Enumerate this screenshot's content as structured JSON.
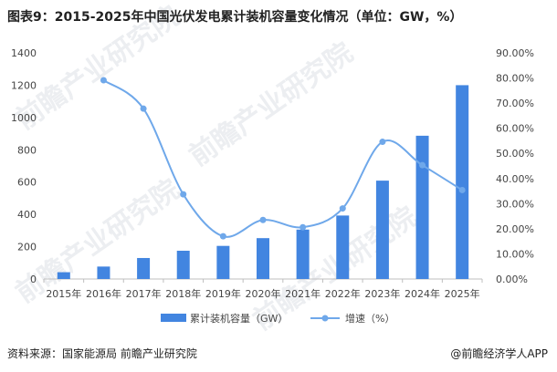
{
  "title": "图表9：2015-2025年中国光伏发电累计装机容量变化情况（单位：GW，%）",
  "source": "资料来源：国家能源局  前瞻产业研究院",
  "brand": "@前瞻经济学人APP",
  "watermark": "前瞻产业研究院",
  "chart_data": {
    "type": "bar+line",
    "title": "图表9：2015-2025年中国光伏发电累计装机容量变化情况（单位：GW，%）",
    "categories": [
      "2015年",
      "2016年",
      "2017年",
      "2018年",
      "2019年",
      "2020年",
      "2021年",
      "2022年",
      "2023年",
      "2024年",
      "2025年"
    ],
    "series": [
      {
        "name": "累计装机容量（GW）",
        "type": "bar",
        "axis": "left",
        "color": "#4285e0",
        "values": [
          42,
          77,
          130,
          175,
          205,
          253,
          306,
          393,
          609,
          887,
          1200
        ]
      },
      {
        "name": "增速（%）",
        "type": "line",
        "axis": "right",
        "color": "#6fa8ea",
        "values": [
          null,
          79.1,
          67.8,
          33.7,
          17.0,
          23.5,
          20.6,
          28.1,
          54.6,
          45.3,
          35.4
        ]
      }
    ],
    "y_left": {
      "min": 0,
      "max": 1400,
      "ticks": [
        "0",
        "200",
        "400",
        "600",
        "800",
        "1000",
        "1200",
        "1400"
      ]
    },
    "y_right": {
      "min": 0,
      "max": 90,
      "ticks": [
        "0.00%",
        "10.00%",
        "20.00%",
        "30.00%",
        "40.00%",
        "50.00%",
        "60.00%",
        "70.00%",
        "80.00%",
        "90.00%"
      ]
    },
    "grid": false,
    "legend": "bottom"
  }
}
